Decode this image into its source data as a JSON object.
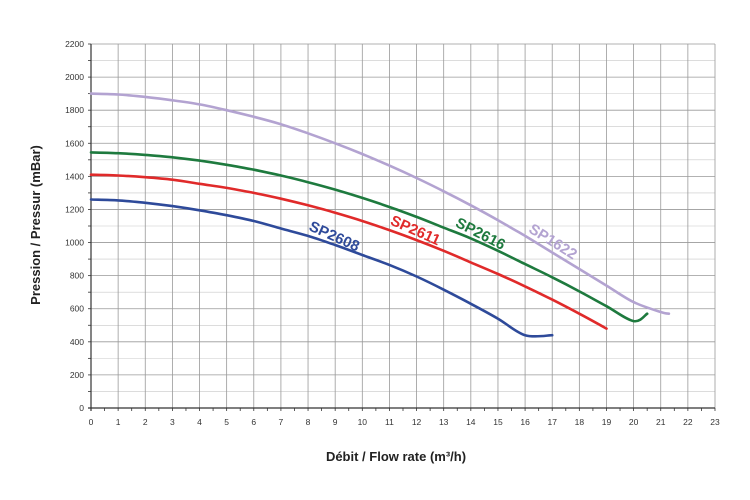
{
  "chart_data": {
    "type": "line",
    "title": "",
    "xlabel": "Débit / Flow rate (m³/h)",
    "ylabel": "Pression / Pressur (mBar)",
    "xlim": [
      0,
      23
    ],
    "ylim": [
      0,
      2200
    ],
    "x_ticks": [
      "0",
      "1",
      "2",
      "3",
      "4",
      "5",
      "6",
      "7",
      "8",
      "9",
      "10",
      "11",
      "12",
      "13",
      "14",
      "15",
      "16",
      "17",
      "18",
      "19",
      "20",
      "21",
      "22",
      "23"
    ],
    "y_ticks": [
      "0",
      "200",
      "400",
      "600",
      "800",
      "1000",
      "1200",
      "1400",
      "1600",
      "1800",
      "2000",
      "2200"
    ],
    "grid": true,
    "series": [
      {
        "name": "SP2608",
        "color": "#2e4a9a",
        "x": [
          0,
          1,
          2,
          3,
          4,
          5,
          6,
          7,
          8,
          9,
          10,
          11,
          12,
          13,
          14,
          15,
          16,
          17
        ],
        "y": [
          1260,
          1255,
          1240,
          1220,
          1195,
          1165,
          1130,
          1085,
          1040,
          985,
          925,
          865,
          795,
          715,
          630,
          540,
          440,
          440
        ]
      },
      {
        "name": "SP2611",
        "color": "#e02a2a",
        "x": [
          0,
          1,
          2,
          3,
          4,
          5,
          6,
          7,
          8,
          9,
          10,
          11,
          12,
          13,
          14,
          15,
          16,
          17,
          18,
          19
        ],
        "y": [
          1410,
          1405,
          1395,
          1380,
          1355,
          1330,
          1300,
          1265,
          1225,
          1180,
          1130,
          1075,
          1015,
          950,
          880,
          810,
          735,
          655,
          570,
          480
        ]
      },
      {
        "name": "SP2616",
        "color": "#1e7a3e",
        "x": [
          0,
          1,
          2,
          3,
          4,
          5,
          6,
          7,
          8,
          9,
          10,
          11,
          12,
          13,
          14,
          15,
          16,
          17,
          18,
          19,
          20,
          20.5
        ],
        "y": [
          1545,
          1540,
          1530,
          1515,
          1495,
          1470,
          1440,
          1405,
          1365,
          1320,
          1270,
          1215,
          1155,
          1090,
          1025,
          950,
          870,
          790,
          705,
          615,
          525,
          570
        ]
      },
      {
        "name": "SP1622",
        "color": "#b3a3d1",
        "x": [
          0,
          1,
          2,
          3,
          4,
          5,
          6,
          7,
          8,
          9,
          10,
          11,
          12,
          13,
          14,
          15,
          16,
          17,
          18,
          19,
          20,
          21,
          21.3
        ],
        "y": [
          1900,
          1895,
          1880,
          1860,
          1835,
          1800,
          1760,
          1715,
          1660,
          1600,
          1535,
          1465,
          1390,
          1310,
          1225,
          1135,
          1040,
          940,
          840,
          740,
          640,
          580,
          570
        ]
      }
    ]
  }
}
